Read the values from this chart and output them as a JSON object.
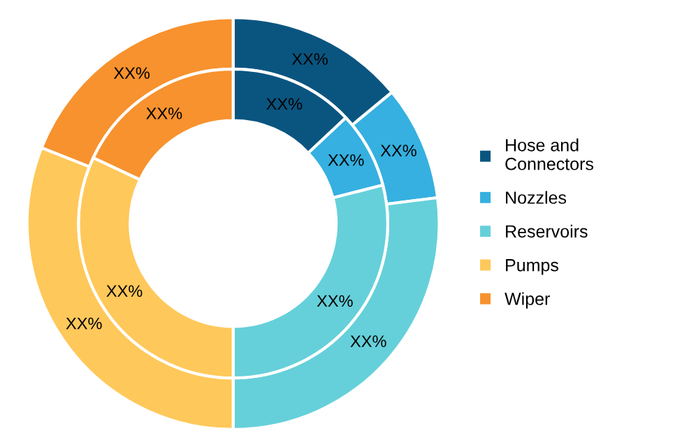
{
  "chart_data": {
    "type": "donut",
    "categories": [
      "Hose and\nConnectors",
      "Nozzles",
      "Reservoirs",
      "Pumps",
      "Wiper"
    ],
    "colors": [
      "#0a5580",
      "#35b0e0",
      "#65d0da",
      "#ffc85a",
      "#f7922e"
    ],
    "series": [
      {
        "values": [
          14,
          9,
          27,
          31,
          19
        ],
        "value_labels": [
          "XX%",
          "XX%",
          "XX%",
          "XX%",
          "XX%"
        ]
      },
      {
        "values": [
          13,
          8,
          29,
          32,
          18
        ],
        "value_labels": [
          "XX%",
          "XX%",
          "XX%",
          "XX%",
          "XX%"
        ]
      }
    ],
    "legend": "right"
  }
}
